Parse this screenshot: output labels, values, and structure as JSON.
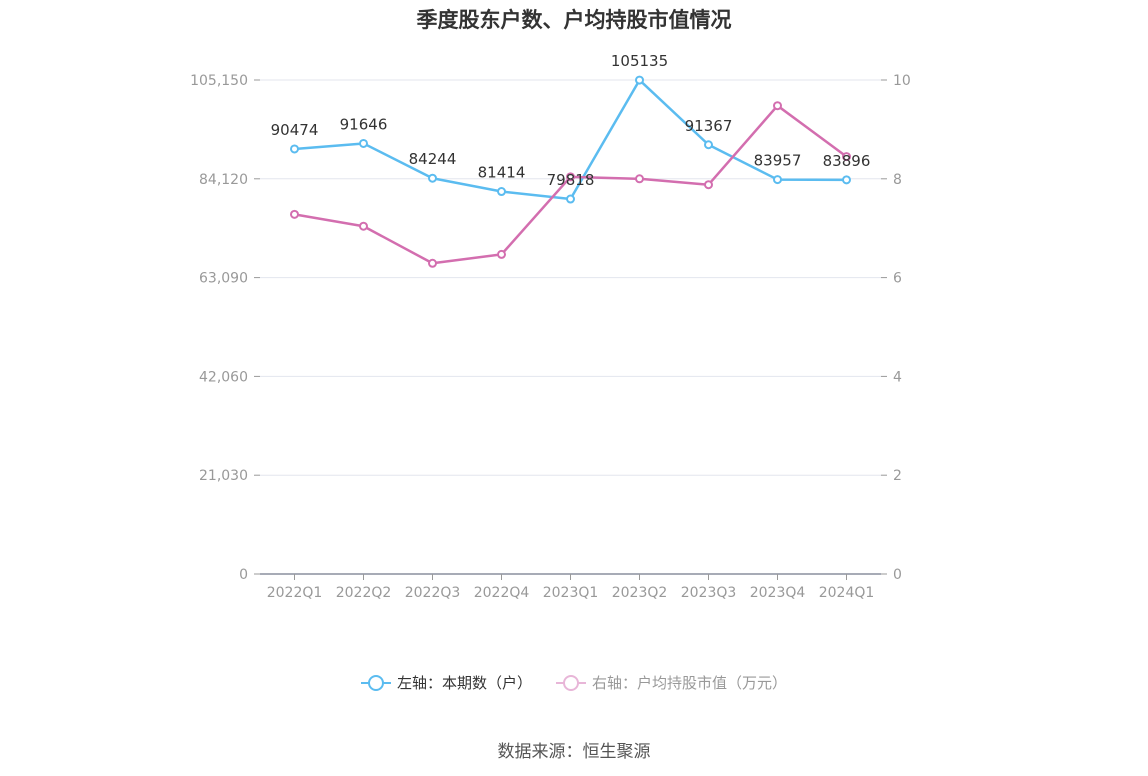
{
  "title": "季度股东户数、户均持股市值情况",
  "source": "数据来源：恒生聚源",
  "colors": {
    "left_series": "#5bbcf0",
    "right_series": "#d36eaf",
    "axis": "#999999",
    "grid": "#e3e6ee"
  },
  "legend": {
    "left_label": "左轴：本期数（户）",
    "right_label": "右轴：户均持股市值（万元）"
  },
  "chart_data": {
    "type": "line",
    "categories": [
      "2022Q1",
      "2022Q2",
      "2022Q3",
      "2022Q4",
      "2023Q1",
      "2023Q2",
      "2023Q3",
      "2023Q4",
      "2024Q1"
    ],
    "y_left": {
      "ticks": [
        "0",
        "21,030",
        "42,060",
        "63,090",
        "84,120",
        "105,150"
      ],
      "ylim": [
        0,
        105150
      ]
    },
    "y_right": {
      "ticks": [
        "0",
        "2",
        "4",
        "6",
        "8",
        "10"
      ],
      "ylim": [
        0,
        10
      ]
    },
    "series": [
      {
        "name": "左轴：本期数（户）",
        "axis": "left",
        "values": [
          90474,
          91646,
          84244,
          81414,
          79818,
          105135,
          91367,
          83957,
          83896
        ],
        "labels": [
          "90474",
          "91646",
          "84244",
          "81414",
          "79818",
          "105135",
          "91367",
          "83957",
          "83896"
        ]
      },
      {
        "name": "右轴：户均持股市值（万元）",
        "axis": "right",
        "values": [
          7.28,
          7.04,
          6.29,
          6.47,
          8.04,
          8.0,
          7.88,
          9.48,
          8.45
        ]
      }
    ],
    "grid": true,
    "legend_position": "bottom"
  }
}
